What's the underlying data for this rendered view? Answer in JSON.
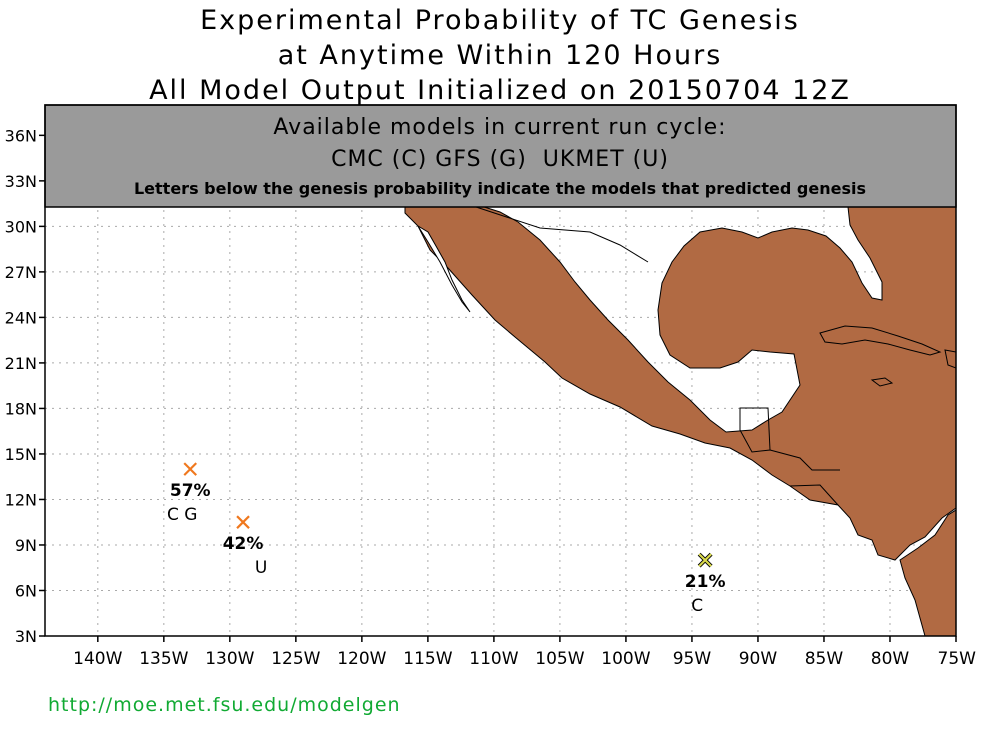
{
  "title": {
    "line1": "Experimental Probability of TC Genesis",
    "line2": "at Anytime Within 120 Hours",
    "line3": "All Model Output Initialized on 20150704 12Z"
  },
  "banner": {
    "line1": "Available models in current run cycle:",
    "line2": "CMC (C) GFS (G)  UKMET (U)",
    "line3": "Letters below the genesis probability indicate the models that predicted genesis"
  },
  "axes": {
    "lon_ticks": [
      "140W",
      "135W",
      "130W",
      "125W",
      "120W",
      "115W",
      "110W",
      "105W",
      "100W",
      "95W",
      "90W",
      "85W",
      "80W",
      "75W"
    ],
    "lat_ticks": [
      "3N",
      "6N",
      "9N",
      "12N",
      "15N",
      "18N",
      "21N",
      "24N",
      "27N",
      "30N",
      "33N",
      "36N"
    ]
  },
  "colors": {
    "land": "#b16a43",
    "banner": "#9a9a9a",
    "high_prob_marker": "#f0781e",
    "low_prob_marker": "#d8d84a",
    "url": "#11aa33"
  },
  "genesis_points": [
    {
      "lon": -133,
      "lat": 14,
      "probability": "57%",
      "models": "CG",
      "level": "high"
    },
    {
      "lon": -129,
      "lat": 10.5,
      "probability": "42%",
      "models": "U",
      "level": "high"
    },
    {
      "lon": -94,
      "lat": 8,
      "probability": "21%",
      "models": "C",
      "level": "low"
    }
  ],
  "footer_url": "http://moe.met.fsu.edu/modelgen"
}
